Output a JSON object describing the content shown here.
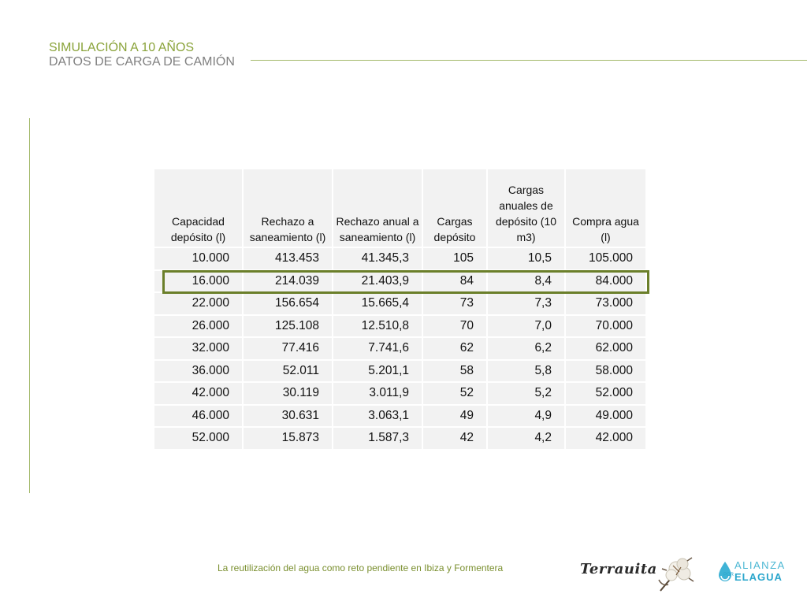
{
  "slide": {
    "title": "SIMULACIÓN A 10 AÑOS",
    "subtitle": "DATOS DE CARGA DE CAMIÓN",
    "footer": "La reutilización del agua como reto pendiente en Ibiza y Formentera"
  },
  "table": {
    "headers": [
      "Capacidad depósito (l)",
      "Rechazo a saneamiento (l)",
      "Rechazo anual a saneamiento (l)",
      "Cargas depósito",
      "Cargas anuales de depósito (10 m3)",
      "Compra agua (l)"
    ],
    "rows": [
      [
        "10.000",
        "413.453",
        "41.345,3",
        "105",
        "10,5",
        "105.000"
      ],
      [
        "16.000",
        "214.039",
        "21.403,9",
        "84",
        "8,4",
        "84.000"
      ],
      [
        "22.000",
        "156.654",
        "15.665,4",
        "73",
        "7,3",
        "73.000"
      ],
      [
        "26.000",
        "125.108",
        "12.510,8",
        "70",
        "7,0",
        "70.000"
      ],
      [
        "32.000",
        "77.416",
        "7.741,6",
        "62",
        "6,2",
        "62.000"
      ],
      [
        "36.000",
        "52.011",
        "5.201,1",
        "58",
        "5,8",
        "58.000"
      ],
      [
        "42.000",
        "30.119",
        "3.011,9",
        "52",
        "5,2",
        "52.000"
      ],
      [
        "46.000",
        "30.631",
        "3.063,1",
        "49",
        "4,9",
        "49.000"
      ],
      [
        "52.000",
        "15.873",
        "1.587,3",
        "42",
        "4,2",
        "42.000"
      ]
    ],
    "highlighted_row": 1
  },
  "logos": {
    "terrauita": "Terrauita",
    "alianza_line1": "ALIANZA",
    "alianza_por": "POR",
    "alianza_line2": "ELAGUA"
  },
  "colors": {
    "accent_green": "#8aa33a",
    "highlight_border": "#6b7f2a",
    "alianza_blue": "#2aa6cc"
  }
}
